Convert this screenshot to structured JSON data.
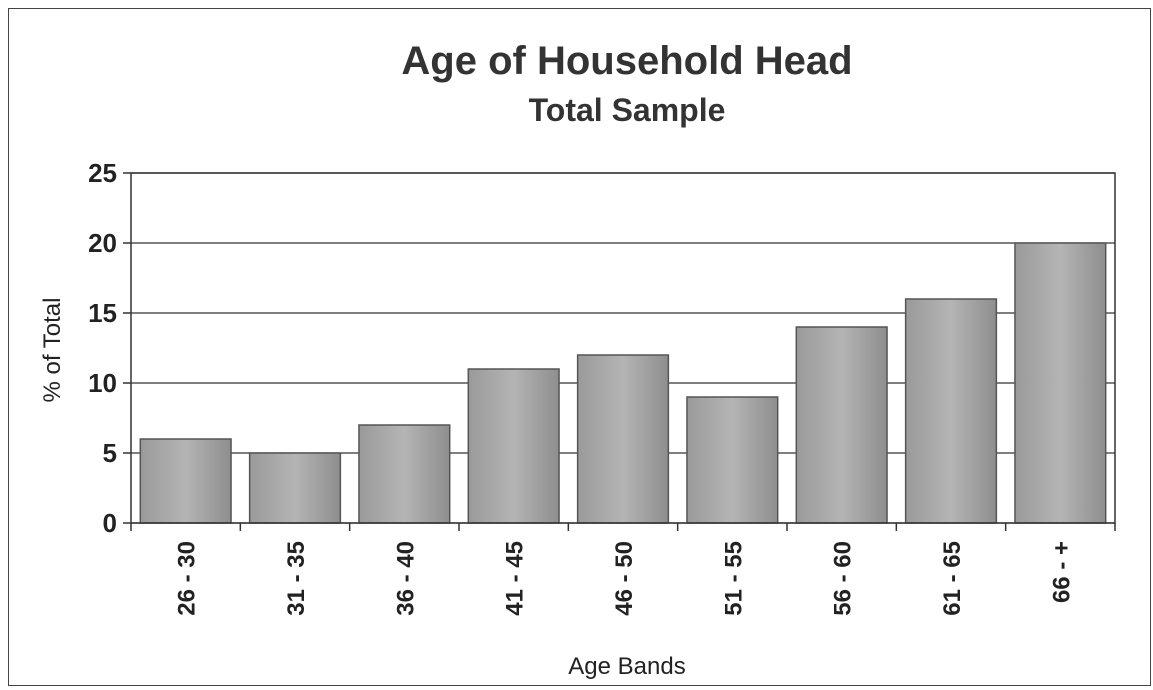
{
  "chart_data": {
    "type": "bar",
    "title": "Age of Household Head",
    "subtitle": "Total Sample",
    "xlabel": "Age Bands",
    "ylabel": "% of Total",
    "categories": [
      "26 - 30",
      "31 - 35",
      "36 - 40",
      "41 - 45",
      "46 - 50",
      "51 - 55",
      "56 - 60",
      "61 - 65",
      "66 - +"
    ],
    "values": [
      6,
      5,
      7,
      11,
      12,
      9,
      14,
      16,
      20
    ],
    "ylim": [
      0,
      25
    ],
    "yticks": [
      "0",
      "5",
      "10",
      "15",
      "20",
      "25"
    ],
    "grid": true,
    "legend": "none",
    "colors": {
      "bar": "#a9a9a9",
      "bar_edge": "#555555",
      "grid": "#333333"
    }
  }
}
